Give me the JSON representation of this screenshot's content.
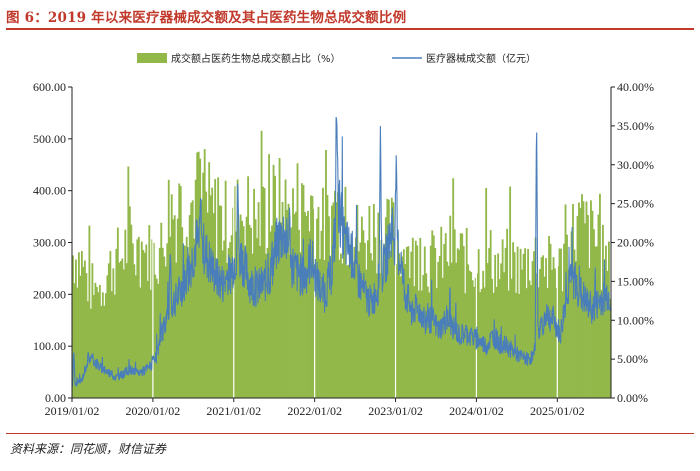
{
  "figure": {
    "title": "图 6：2019 年以来医疗器械成交额及其占医药生物总成交额比例",
    "source": "资料来源：同花顺，财信证券"
  },
  "colors": {
    "bar": "#92b84a",
    "line": "#4a7ebb",
    "accent": "#c0392b"
  },
  "chart_data": {
    "type": "bar+line",
    "legend_position": "top",
    "grid": false,
    "x_tick_labels": [
      "2019/01/02",
      "2020/01/02",
      "2021/01/02",
      "2022/01/02",
      "2023/01/02",
      "2024/01/02",
      "2025/01/02"
    ],
    "x_range": [
      "2019/01/02",
      "2025/09"
    ],
    "y_left": {
      "min": 0,
      "max": 600,
      "ticks": [
        "0.00",
        "100.00",
        "200.00",
        "300.00",
        "400.00",
        "500.00",
        "600.00"
      ]
    },
    "y_right": {
      "min": 0,
      "max": 40,
      "ticks": [
        "0.00%",
        "5.00%",
        "10.00%",
        "15.00%",
        "20.00%",
        "25.00%",
        "30.00%",
        "35.00%",
        "40.00%"
      ]
    },
    "series": [
      {
        "name": "成交额占医药生物总成交额占比（%）",
        "type": "bar",
        "axis": "right",
        "points": [
          [
            "2019/01",
            19
          ],
          [
            "2019/02",
            18
          ],
          [
            "2019/03",
            15
          ],
          [
            "2019/04",
            14
          ],
          [
            "2019/05",
            15
          ],
          [
            "2019/06",
            17
          ],
          [
            "2019/07",
            18
          ],
          [
            "2019/08",
            19
          ],
          [
            "2019/09",
            21
          ],
          [
            "2019/10",
            19
          ],
          [
            "2019/11",
            20
          ],
          [
            "2019/12",
            19
          ],
          [
            "2020/01",
            19
          ],
          [
            "2020/02",
            20
          ],
          [
            "2020/03",
            26
          ],
          [
            "2020/04",
            24
          ],
          [
            "2020/05",
            26
          ],
          [
            "2020/06",
            25
          ],
          [
            "2020/07",
            27
          ],
          [
            "2020/08",
            26
          ],
          [
            "2020/09",
            25
          ],
          [
            "2020/10",
            24
          ],
          [
            "2020/11",
            23
          ],
          [
            "2020/12",
            24
          ],
          [
            "2021/01",
            24
          ],
          [
            "2021/02",
            25
          ],
          [
            "2021/03",
            24
          ],
          [
            "2021/04",
            23
          ],
          [
            "2021/05",
            24
          ],
          [
            "2021/06",
            25
          ],
          [
            "2021/07",
            26
          ],
          [
            "2021/08",
            25
          ],
          [
            "2021/09",
            24
          ],
          [
            "2021/10",
            26
          ],
          [
            "2021/11",
            24
          ],
          [
            "2021/12",
            26
          ],
          [
            "2022/01",
            24
          ],
          [
            "2022/02",
            22
          ],
          [
            "2022/03",
            24
          ],
          [
            "2022/04",
            25
          ],
          [
            "2022/05",
            22
          ],
          [
            "2022/06",
            23
          ],
          [
            "2022/07",
            21
          ],
          [
            "2022/08",
            21
          ],
          [
            "2022/09",
            23
          ],
          [
            "2022/10",
            22
          ],
          [
            "2022/11",
            21
          ],
          [
            "2022/12",
            22
          ],
          [
            "2023/01",
            21
          ],
          [
            "2023/02",
            19
          ],
          [
            "2023/03",
            18
          ],
          [
            "2023/04",
            19
          ],
          [
            "2023/05",
            19
          ],
          [
            "2023/06",
            18
          ],
          [
            "2023/07",
            18
          ],
          [
            "2023/08",
            19
          ],
          [
            "2023/09",
            20
          ],
          [
            "2023/10",
            19
          ],
          [
            "2023/11",
            18
          ],
          [
            "2023/12",
            18
          ],
          [
            "2024/01",
            18
          ],
          [
            "2024/02",
            19
          ],
          [
            "2024/03",
            18
          ],
          [
            "2024/04",
            17
          ],
          [
            "2024/05",
            18
          ],
          [
            "2024/06",
            18
          ],
          [
            "2024/07",
            17
          ],
          [
            "2024/08",
            18
          ],
          [
            "2024/09",
            19
          ],
          [
            "2024/10",
            18
          ],
          [
            "2024/11",
            17
          ],
          [
            "2024/12",
            18
          ],
          [
            "2025/01",
            17
          ],
          [
            "2025/02",
            20
          ],
          [
            "2025/03",
            22
          ],
          [
            "2025/04",
            23
          ],
          [
            "2025/05",
            22
          ],
          [
            "2025/06",
            21
          ],
          [
            "2025/07",
            19
          ],
          [
            "2025/08",
            17
          ],
          [
            "2025/09",
            16
          ]
        ]
      },
      {
        "name": "医疗器械成交额（亿元）",
        "type": "line",
        "axis": "left",
        "points": [
          [
            "2019/01",
            25
          ],
          [
            "2019/02",
            35
          ],
          [
            "2019/03",
            80
          ],
          [
            "2019/04",
            70
          ],
          [
            "2019/05",
            55
          ],
          [
            "2019/06",
            50
          ],
          [
            "2019/07",
            40
          ],
          [
            "2019/08",
            45
          ],
          [
            "2019/09",
            55
          ],
          [
            "2019/10",
            48
          ],
          [
            "2019/11",
            52
          ],
          [
            "2019/12",
            60
          ],
          [
            "2020/01",
            75
          ],
          [
            "2020/02",
            130
          ],
          [
            "2020/03",
            180
          ],
          [
            "2020/04",
            190
          ],
          [
            "2020/05",
            220
          ],
          [
            "2020/06",
            250
          ],
          [
            "2020/07",
            300
          ],
          [
            "2020/08",
            290
          ],
          [
            "2020/09",
            260
          ],
          [
            "2020/10",
            230
          ],
          [
            "2020/11",
            220
          ],
          [
            "2020/12",
            240
          ],
          [
            "2021/01",
            280
          ],
          [
            "2021/02",
            260
          ],
          [
            "2021/03",
            220
          ],
          [
            "2021/04",
            210
          ],
          [
            "2021/05",
            220
          ],
          [
            "2021/06",
            240
          ],
          [
            "2021/07",
            300
          ],
          [
            "2021/08",
            320
          ],
          [
            "2021/09",
            260
          ],
          [
            "2021/10",
            240
          ],
          [
            "2021/11",
            230
          ],
          [
            "2021/12",
            270
          ],
          [
            "2022/01",
            220
          ],
          [
            "2022/02",
            200
          ],
          [
            "2022/03",
            240
          ],
          [
            "2022/04",
            380
          ],
          [
            "2022/05",
            300
          ],
          [
            "2022/06",
            280
          ],
          [
            "2022/07",
            230
          ],
          [
            "2022/08",
            200
          ],
          [
            "2022/09",
            180
          ],
          [
            "2022/10",
            220
          ],
          [
            "2022/11",
            260
          ],
          [
            "2022/12",
            330
          ],
          [
            "2023/01",
            280
          ],
          [
            "2023/02",
            200
          ],
          [
            "2023/03",
            170
          ],
          [
            "2023/04",
            170
          ],
          [
            "2023/05",
            150
          ],
          [
            "2023/06",
            150
          ],
          [
            "2023/07",
            130
          ],
          [
            "2023/08",
            150
          ],
          [
            "2023/09",
            140
          ],
          [
            "2023/10",
            120
          ],
          [
            "2023/11",
            125
          ],
          [
            "2023/12",
            115
          ],
          [
            "2024/01",
            110
          ],
          [
            "2024/02",
            100
          ],
          [
            "2024/03",
            120
          ],
          [
            "2024/04",
            105
          ],
          [
            "2024/05",
            100
          ],
          [
            "2024/06",
            90
          ],
          [
            "2024/07",
            80
          ],
          [
            "2024/08",
            75
          ],
          [
            "2024/09",
            80
          ],
          [
            "2024/10",
            140
          ],
          [
            "2024/11",
            160
          ],
          [
            "2024/12",
            150
          ],
          [
            "2025/01",
            120
          ],
          [
            "2025/02",
            210
          ],
          [
            "2025/03",
            230
          ],
          [
            "2025/04",
            200
          ],
          [
            "2025/05",
            180
          ],
          [
            "2025/06",
            170
          ],
          [
            "2025/07",
            190
          ],
          [
            "2025/08",
            200
          ],
          [
            "2025/09",
            180
          ]
        ],
        "peaks": [
          [
            "2019/01/10",
            95
          ],
          [
            "2020/03/20",
            290
          ],
          [
            "2020/08/05",
            395
          ],
          [
            "2021/01/20",
            430
          ],
          [
            "2021/09/10",
            370
          ],
          [
            "2022/04/10",
            565
          ],
          [
            "2022/10/25",
            530
          ],
          [
            "2023/01/05",
            470
          ],
          [
            "2024/09/30",
            565
          ]
        ]
      }
    ]
  }
}
